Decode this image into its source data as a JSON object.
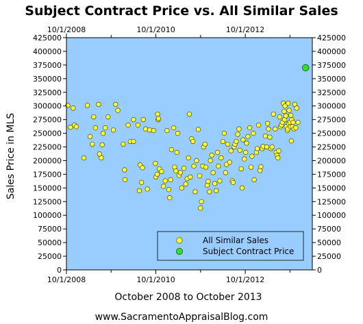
{
  "chart_data": {
    "type": "scatter",
    "title": "Subject Contract Price vs. All Similar Sales",
    "xlabel": "October 2008 to October 2013",
    "ylabel": "Sales Price in MLS",
    "footer": "www.SacramentoAppraisalBlog.com",
    "ylim": [
      0,
      425000
    ],
    "xlim": [
      2008.75,
      2013.75
    ],
    "x_ticks": [
      {
        "value": 2008.75,
        "label": "10/1/2008"
      },
      {
        "value": 2010.75,
        "label": "10/1/2010"
      },
      {
        "value": 2012.75,
        "label": "10/1/2012"
      }
    ],
    "y_ticks": [
      {
        "value": 0,
        "label": "0"
      },
      {
        "value": 25000,
        "label": "25000"
      },
      {
        "value": 50000,
        "label": "50000"
      },
      {
        "value": 75000,
        "label": "75000"
      },
      {
        "value": 100000,
        "label": "100000"
      },
      {
        "value": 125000,
        "label": "125000"
      },
      {
        "value": 150000,
        "label": "150000"
      },
      {
        "value": 175000,
        "label": "175000"
      },
      {
        "value": 200000,
        "label": "200000"
      },
      {
        "value": 225000,
        "label": "225000"
      },
      {
        "value": 250000,
        "label": "250000"
      },
      {
        "value": 275000,
        "label": "275000"
      },
      {
        "value": 300000,
        "label": "300000"
      },
      {
        "value": 325000,
        "label": "325000"
      },
      {
        "value": 350000,
        "label": "350000"
      },
      {
        "value": 375000,
        "label": "375000"
      },
      {
        "value": 400000,
        "label": "400000"
      },
      {
        "value": 425000,
        "label": "425000"
      }
    ],
    "grid": false,
    "legend_position": "bottom-right",
    "colors": {
      "plot_background": "#99ccff",
      "similar_sales": "#ffff33",
      "subject": "#33dd33",
      "marker_edge": "#333300"
    },
    "series": [
      {
        "name": "All Similar Sales",
        "points": [
          [
            2008.78,
            301000
          ],
          [
            2008.84,
            261000
          ],
          [
            2008.9,
            296000
          ],
          [
            2008.93,
            265000
          ],
          [
            2008.97,
            262000
          ],
          [
            2009.14,
            205000
          ],
          [
            2009.22,
            301000
          ],
          [
            2009.28,
            244000
          ],
          [
            2009.33,
            230000
          ],
          [
            2009.36,
            280000
          ],
          [
            2009.4,
            260000
          ],
          [
            2009.47,
            303000
          ],
          [
            2009.49,
            212000
          ],
          [
            2009.53,
            205000
          ],
          [
            2009.55,
            229000
          ],
          [
            2009.57,
            250000
          ],
          [
            2009.62,
            260000
          ],
          [
            2009.68,
            280000
          ],
          [
            2009.8,
            256000
          ],
          [
            2009.85,
            303000
          ],
          [
            2009.9,
            292000
          ],
          [
            2010.02,
            230000
          ],
          [
            2010.05,
            183000
          ],
          [
            2010.06,
            165000
          ],
          [
            2010.13,
            265000
          ],
          [
            2010.18,
            235000
          ],
          [
            2010.25,
            235000
          ],
          [
            2010.25,
            275000
          ],
          [
            2010.35,
            265000
          ],
          [
            2010.38,
            145000
          ],
          [
            2010.4,
            192000
          ],
          [
            2010.43,
            160000
          ],
          [
            2010.45,
            187000
          ],
          [
            2010.47,
            275000
          ],
          [
            2010.52,
            258000
          ],
          [
            2010.56,
            148000
          ],
          [
            2010.61,
            256000
          ],
          [
            2010.7,
            255000
          ],
          [
            2010.74,
            195000
          ],
          [
            2010.75,
            170000
          ],
          [
            2010.78,
            175000
          ],
          [
            2010.79,
            285000
          ],
          [
            2010.8,
            275000
          ],
          [
            2010.81,
            277000
          ],
          [
            2010.83,
            185000
          ],
          [
            2010.88,
            180000
          ],
          [
            2010.92,
            153000
          ],
          [
            2010.96,
            163000
          ],
          [
            2011.0,
            255000
          ],
          [
            2011.04,
            147000
          ],
          [
            2011.06,
            132000
          ],
          [
            2011.08,
            165000
          ],
          [
            2011.1,
            220000
          ],
          [
            2011.15,
            260000
          ],
          [
            2011.17,
            188000
          ],
          [
            2011.2,
            181000
          ],
          [
            2011.22,
            215000
          ],
          [
            2011.24,
            250000
          ],
          [
            2011.27,
            173000
          ],
          [
            2011.3,
            178000
          ],
          [
            2011.33,
            150000
          ],
          [
            2011.38,
            186000
          ],
          [
            2011.42,
            157000
          ],
          [
            2011.45,
            167000
          ],
          [
            2011.48,
            205000
          ],
          [
            2011.5,
            285000
          ],
          [
            2011.52,
            170000
          ],
          [
            2011.55,
            240000
          ],
          [
            2011.58,
            235000
          ],
          [
            2011.6,
            190000
          ],
          [
            2011.63,
            143000
          ],
          [
            2011.66,
            200000
          ],
          [
            2011.7,
            257000
          ],
          [
            2011.73,
            172000
          ],
          [
            2011.75,
            113000
          ],
          [
            2011.77,
            125000
          ],
          [
            2011.8,
            190000
          ],
          [
            2011.82,
            225000
          ],
          [
            2011.85,
            230000
          ],
          [
            2011.87,
            188000
          ],
          [
            2011.9,
            155000
          ],
          [
            2011.92,
            162000
          ],
          [
            2011.95,
            143000
          ],
          [
            2011.97,
            200000
          ],
          [
            2012.0,
            210000
          ],
          [
            2012.03,
            178000
          ],
          [
            2012.07,
            158000
          ],
          [
            2012.1,
            145000
          ],
          [
            2012.13,
            215000
          ],
          [
            2012.15,
            190000
          ],
          [
            2012.18,
            163000
          ],
          [
            2012.21,
            205000
          ],
          [
            2012.25,
            235000
          ],
          [
            2012.28,
            250000
          ],
          [
            2012.31,
            178000
          ],
          [
            2012.33,
            193000
          ],
          [
            2012.36,
            230000
          ],
          [
            2012.4,
            197000
          ],
          [
            2012.43,
            218000
          ],
          [
            2012.46,
            163000
          ],
          [
            2012.48,
            160000
          ],
          [
            2012.5,
            225000
          ],
          [
            2012.52,
            230000
          ],
          [
            2012.55,
            235000
          ],
          [
            2012.58,
            248000
          ],
          [
            2012.61,
            258000
          ],
          [
            2012.63,
            219000
          ],
          [
            2012.66,
            185000
          ],
          [
            2012.68,
            150000
          ],
          [
            2012.7,
            238000
          ],
          [
            2012.73,
            203000
          ],
          [
            2012.76,
            215000
          ],
          [
            2012.78,
            232000
          ],
          [
            2012.81,
            244000
          ],
          [
            2012.85,
            260000
          ],
          [
            2012.88,
            188000
          ],
          [
            2012.9,
            208000
          ],
          [
            2012.93,
            250000
          ],
          [
            2012.95,
            165000
          ],
          [
            2013.0,
            215000
          ],
          [
            2013.02,
            222000
          ],
          [
            2013.05,
            265000
          ],
          [
            2013.08,
            182000
          ],
          [
            2013.1,
            189000
          ],
          [
            2013.13,
            222000
          ],
          [
            2013.15,
            226000
          ],
          [
            2013.2,
            245000
          ],
          [
            2013.23,
            225000
          ],
          [
            2013.25,
            268000
          ],
          [
            2013.27,
            258000
          ],
          [
            2013.3,
            243000
          ],
          [
            2013.32,
            222000
          ],
          [
            2013.35,
            225000
          ],
          [
            2013.38,
            285000
          ],
          [
            2013.42,
            258000
          ],
          [
            2013.44,
            215000
          ],
          [
            2013.46,
            210000
          ],
          [
            2013.48,
            205000
          ],
          [
            2013.5,
            218000
          ],
          [
            2013.52,
            280000
          ],
          [
            2013.54,
            262000
          ],
          [
            2013.56,
            265000
          ],
          [
            2013.58,
            270000
          ],
          [
            2013.6,
            305000
          ],
          [
            2013.62,
            290000
          ],
          [
            2013.63,
            275000
          ],
          [
            2013.64,
            300000
          ],
          [
            2013.66,
            282000
          ],
          [
            2013.67,
            262000
          ],
          [
            2013.69,
            255000
          ],
          [
            2013.7,
            258000
          ],
          [
            2013.71,
            305000
          ],
          [
            2013.72,
            268000
          ],
          [
            2013.73,
            292000
          ],
          [
            2013.75,
            270000
          ],
          [
            2013.76,
            262000
          ],
          [
            2013.77,
            283000
          ],
          [
            2013.78,
            236000
          ],
          [
            2013.79,
            275000
          ],
          [
            2013.8,
            262000
          ],
          [
            2013.82,
            270000
          ],
          [
            2013.84,
            258000
          ],
          [
            2013.86,
            303000
          ],
          [
            2013.88,
            260000
          ],
          [
            2013.9,
            296000
          ],
          [
            2013.93,
            270000
          ]
        ]
      },
      {
        "name": "Subject Contract Price",
        "points": [
          [
            2014.1,
            370000
          ]
        ]
      }
    ]
  }
}
